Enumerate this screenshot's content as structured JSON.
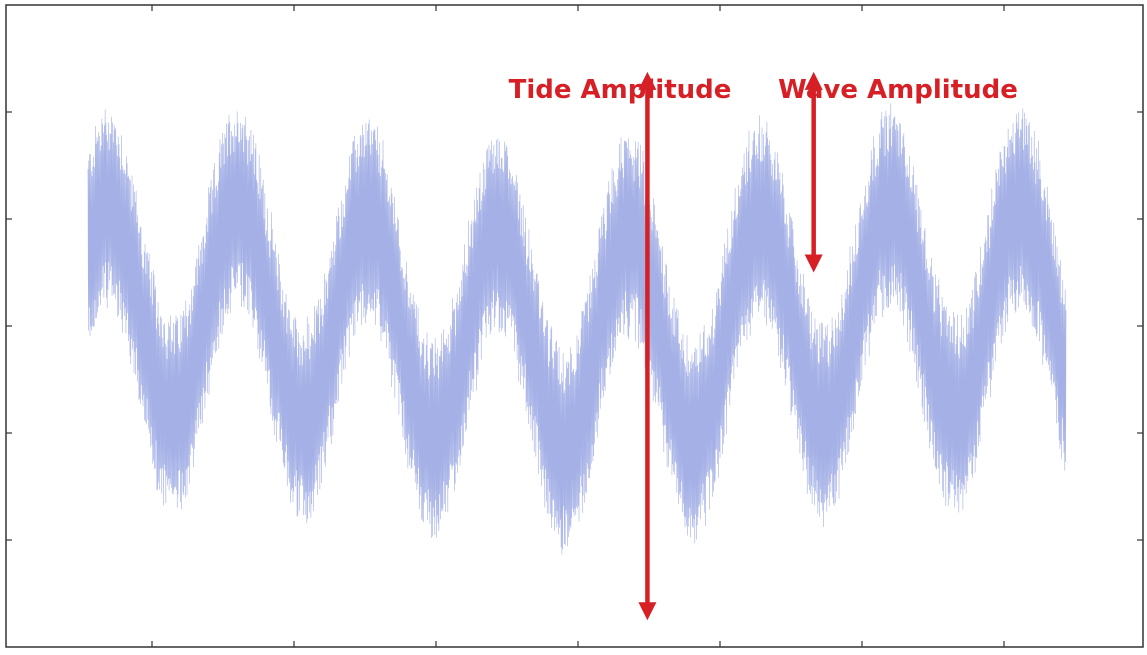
{
  "chart_data": {
    "type": "line",
    "title": "",
    "xlabel": "",
    "ylabel": "",
    "xlim": [
      0,
      1
    ],
    "ylim": [
      -1.2,
      1.2
    ],
    "grid": false,
    "legend": "none",
    "series": [
      {
        "color": "#5a6fd1",
        "description_components": {
          "tide": {
            "amplitude": 0.4,
            "cycles": 7.5,
            "phase": 0.1,
            "offset": 0.0
          },
          "wave": {
            "amplitude": 0.38,
            "cycles": 600
          }
        }
      }
    ],
    "annotations": [
      {
        "id": "tide-amplitude",
        "text": "Tide Amplitude",
        "color": "#d71f26",
        "arrow": {
          "x": 0.572,
          "y_from": -1.1,
          "y_to": 0.95
        }
      },
      {
        "id": "wave-amplitude",
        "text": "Wave Amplitude",
        "color": "#d71f26",
        "arrow": {
          "x": 0.742,
          "y_from": 0.2,
          "y_to": 0.95
        }
      }
    ]
  }
}
